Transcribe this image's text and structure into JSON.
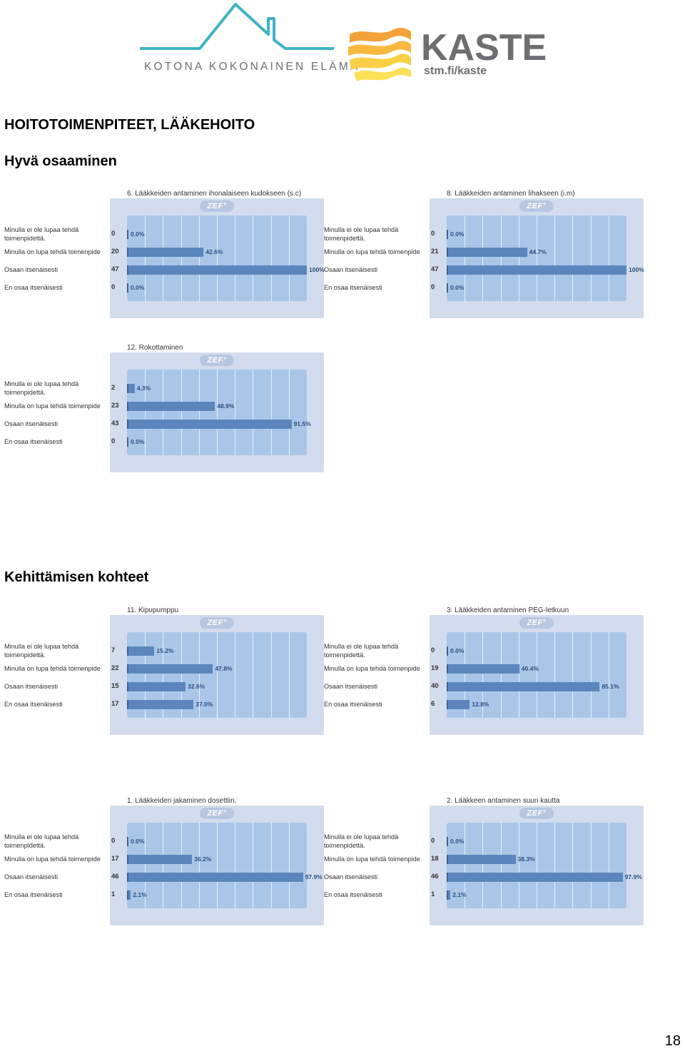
{
  "logo": {
    "left_text": "KOTONA KOKONAINEN ELÄMÄ",
    "right_title": "KASTE",
    "right_url": "stm.fi/kaste",
    "colors": {
      "teal": "#3fb3c4",
      "gray": "#6c6e72",
      "orange": "#f3a23a",
      "yellow": "#f9d44a"
    }
  },
  "page_title": "HOITOTOIMENPITEET, LÄÄKEHOITO",
  "sections": {
    "good": "Hyvä osaaminen",
    "develop": "Kehittämisen kohteet"
  },
  "badge": "ZEF",
  "page_number": "18",
  "colors": {
    "panel": "#d3dced",
    "plot": "#a9c6e8",
    "bar": "#5b86bd",
    "bar_edge": "#3d628f",
    "label": "#2d4f7d"
  },
  "chart_data": [
    {
      "id": "c6",
      "type": "bar",
      "title": "6. Lääkkeiden antaminen ihonalaiseen kudokseen (s.c)",
      "categories": [
        "Minulla ei ole lupaa tehdä toimenpidettä.",
        "Minulla on lupa tehdä toimenpide",
        "Osaan itsenäisesti",
        "En osaa itsenäisesti"
      ],
      "counts": [
        "0",
        "20",
        "47",
        "0"
      ],
      "values": [
        0.0,
        42.6,
        100,
        0.0
      ],
      "value_labels": [
        "0.0%",
        "42.6%",
        "100%",
        "0.0%"
      ],
      "xlim": [
        0,
        100
      ]
    },
    {
      "id": "c8",
      "type": "bar",
      "title": "8. Lääkkeiden antaminen lihakseen (i.m)",
      "categories": [
        "Minulla ei ole lupaa tehdä toimenpidettä.",
        "Minulla on lupa tehdä toimenpide",
        "Osaan itsenäisesti",
        "En osaa itsenäisesti"
      ],
      "counts": [
        "0",
        "21",
        "47",
        "0"
      ],
      "values": [
        0.0,
        44.7,
        100,
        0.0
      ],
      "value_labels": [
        "0.0%",
        "44.7%",
        "100%",
        "0.0%"
      ],
      "xlim": [
        0,
        100
      ]
    },
    {
      "id": "c12",
      "type": "bar",
      "title": "12. Rokottaminen",
      "categories": [
        "Minulla ei ole lupaa tehdä toimenpidettä.",
        "Minulla on lupa tehdä toimenpide",
        "Osaan itsenäisesti",
        "En osaa itsenäisesti"
      ],
      "counts": [
        "2",
        "23",
        "43",
        "0"
      ],
      "values": [
        4.3,
        48.9,
        91.5,
        0.0
      ],
      "value_labels": [
        "4.3%",
        "48.9%",
        "91.5%",
        "0.0%"
      ],
      "xlim": [
        0,
        100
      ]
    },
    {
      "id": "c11",
      "type": "bar",
      "title": "11. Kipupumppu",
      "categories": [
        "Minulla ei ole lupaa tehdä toimenpidettä.",
        "Minulla on lupa tehdä toimenpide",
        "Osaan itsenäisesti",
        "En osaa itsenäisesti"
      ],
      "counts": [
        "7",
        "22",
        "15",
        "17"
      ],
      "values": [
        15.2,
        47.8,
        32.6,
        37.0
      ],
      "value_labels": [
        "15.2%",
        "47.8%",
        "32.6%",
        "37.0%"
      ],
      "xlim": [
        0,
        100
      ]
    },
    {
      "id": "c3",
      "type": "bar",
      "title": "3. Lääkkeiden antaminen PEG-letkuun",
      "categories": [
        "Minulla ei ole lupaa tehdä toimenpidettä.",
        "Minulla on lupa tehdä toimenpide",
        "Osaan itsenäisesti",
        "En osaa itsenäisesti"
      ],
      "counts": [
        "0",
        "19",
        "40",
        "6"
      ],
      "values": [
        0.0,
        40.4,
        85.1,
        12.8
      ],
      "value_labels": [
        "0.0%",
        "40.4%",
        "85.1%",
        "12.8%"
      ],
      "xlim": [
        0,
        100
      ]
    },
    {
      "id": "c1",
      "type": "bar",
      "title": "1. Lääkkeiden jakaminen dosettiin.",
      "categories": [
        "Minulla ei ole lupaa tehdä toimenpidettä.",
        "Minulla on lupa tehdä toimenpide",
        "Osaan itsenäisesti",
        "En osaa itsenäisesti"
      ],
      "counts": [
        "0",
        "17",
        "46",
        "1"
      ],
      "values": [
        0.0,
        36.2,
        97.9,
        2.1
      ],
      "value_labels": [
        "0.0%",
        "36.2%",
        "97.9%",
        "2.1%"
      ],
      "xlim": [
        0,
        100
      ]
    },
    {
      "id": "c2",
      "type": "bar",
      "title": "2. Lääkkeen antaminen suun kautta",
      "categories": [
        "Minulla ei ole lupaa tehdä toimenpidettä.",
        "Minulla on lupa tehdä toimenpide",
        "Osaan itsenäisesti",
        "En osaa itsenäisesti"
      ],
      "counts": [
        "0",
        "18",
        "46",
        "1"
      ],
      "values": [
        0.0,
        38.3,
        97.9,
        2.1
      ],
      "value_labels": [
        "0.0%",
        "38.3%",
        "97.9%",
        "2.1%"
      ],
      "xlim": [
        0,
        100
      ]
    }
  ]
}
